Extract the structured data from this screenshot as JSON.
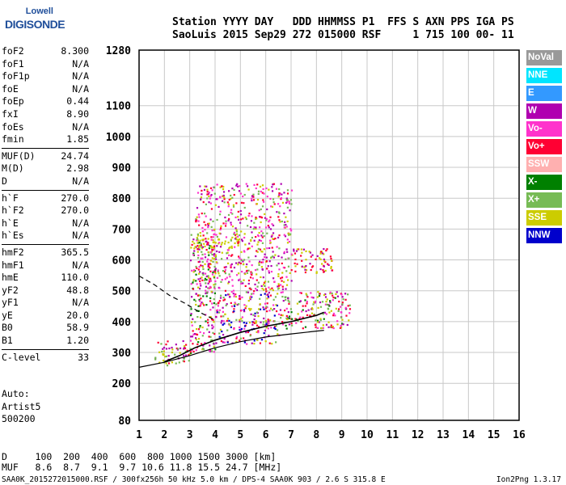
{
  "logo": {
    "line1": "Lowell",
    "line2": "DIGISONDE"
  },
  "header": {
    "row1": "Station YYYY DAY   DDD HHMMSS P1  FFS S AXN PPS IGA PS",
    "row2": "SaoLuis 2015 Sep29 272 015000 RSF     1 715 100 00- 11"
  },
  "params": [
    [
      {
        "name": "foF2",
        "value": "8.300"
      },
      {
        "name": "foF1",
        "value": "N/A"
      },
      {
        "name": "foF1p",
        "value": "N/A"
      },
      {
        "name": "foE",
        "value": "N/A"
      },
      {
        "name": "foEp",
        "value": "0.44"
      },
      {
        "name": "fxI",
        "value": "8.90"
      },
      {
        "name": "foEs",
        "value": "N/A"
      },
      {
        "name": "fmin",
        "value": "1.85"
      }
    ],
    [
      {
        "name": "MUF(D)",
        "value": "24.74"
      },
      {
        "name": "M(D)",
        "value": "2.98"
      },
      {
        "name": "D",
        "value": "N/A"
      }
    ],
    [
      {
        "name": "h`F",
        "value": "270.0"
      },
      {
        "name": "h`F2",
        "value": "270.0"
      },
      {
        "name": "h`E",
        "value": "N/A"
      },
      {
        "name": "h`Es",
        "value": "N/A"
      }
    ],
    [
      {
        "name": "hmF2",
        "value": "365.5"
      },
      {
        "name": "hmF1",
        "value": "N/A"
      },
      {
        "name": "hmE",
        "value": "110.0"
      },
      {
        "name": "yF2",
        "value": "48.8"
      },
      {
        "name": "yF1",
        "value": "N/A"
      },
      {
        "name": "yE",
        "value": "20.0"
      },
      {
        "name": "B0",
        "value": "58.9"
      },
      {
        "name": "B1",
        "value": "1.20"
      }
    ],
    [
      {
        "name": "C-level",
        "value": "33"
      }
    ]
  ],
  "auto": {
    "label": "Auto:",
    "artist": "Artist5",
    "code": "500200"
  },
  "legend": [
    {
      "label": "NoVal",
      "color": "#999999"
    },
    {
      "label": "NNE",
      "color": "#00e5ff"
    },
    {
      "label": "E",
      "color": "#3399ff"
    },
    {
      "label": "W",
      "color": "#b000b0"
    },
    {
      "label": "Vo-",
      "color": "#ff33cc"
    },
    {
      "label": "Vo+",
      "color": "#ff0033"
    },
    {
      "label": "SSW",
      "color": "#ffb0b0"
    },
    {
      "label": "X-",
      "color": "#008000"
    },
    {
      "label": "X+",
      "color": "#77bb55"
    },
    {
      "label": "SSE",
      "color": "#cccc00"
    },
    {
      "label": "NNW",
      "color": "#0000cc"
    }
  ],
  "bottom": {
    "row1": "D     100  200  400  600  800 1000 1500 3000 [km]",
    "row2": "MUF   8.6  8.7  9.1  9.7 10.6 11.8 15.5 24.7 [MHz]"
  },
  "footer": {
    "left": "SAA0K_2015272015000.RSF / 300fx256h 50 kHz 5.0 km / DPS-4 SAA0K 903 / 2.6 S 315.8 E",
    "right": "Ion2Png 1.3.17"
  },
  "chart_data": {
    "type": "scatter",
    "xlim": [
      1,
      16
    ],
    "ylim": [
      80,
      1280
    ],
    "xticks": [
      "1",
      "2",
      "3",
      "4",
      "5",
      "6",
      "7",
      "8",
      "9",
      "10",
      "11",
      "12",
      "13",
      "14",
      "15",
      "16"
    ],
    "yticks": [
      {
        "v": 80,
        "label": "80"
      },
      {
        "v": 200,
        "label": "200"
      },
      {
        "v": 300,
        "label": "300"
      },
      {
        "v": 400,
        "label": "400"
      },
      {
        "v": 500,
        "label": "500"
      },
      {
        "v": 600,
        "label": "600"
      },
      {
        "v": 700,
        "label": "700"
      },
      {
        "v": 800,
        "label": "800"
      },
      {
        "v": 900,
        "label": "900"
      },
      {
        "v": 1000,
        "label": "1000"
      },
      {
        "v": 1100,
        "label": "1100"
      },
      {
        "v": 1280,
        "label": "1280"
      }
    ],
    "grid": true,
    "traces": {
      "o_mode": [
        [
          2.0,
          270
        ],
        [
          2.6,
          290
        ],
        [
          3.2,
          315
        ],
        [
          4.0,
          340
        ],
        [
          5.0,
          365
        ],
        [
          6.0,
          385
        ],
        [
          7.0,
          400
        ],
        [
          8.0,
          420
        ],
        [
          8.3,
          430
        ]
      ],
      "profile": [
        [
          1.0,
          252
        ],
        [
          2.0,
          268
        ],
        [
          3.0,
          290
        ],
        [
          4.0,
          315
        ],
        [
          5.0,
          335
        ],
        [
          6.0,
          350
        ],
        [
          7.0,
          360
        ],
        [
          8.3,
          372
        ]
      ],
      "x_mode_dashed": [
        [
          1.0,
          548
        ],
        [
          1.6,
          520
        ],
        [
          2.2,
          485
        ],
        [
          2.8,
          460
        ],
        [
          3.4,
          430
        ],
        [
          4.0,
          405
        ]
      ]
    },
    "echo_clusters": [
      {
        "f": [
          1.6,
          3.0
        ],
        "h": [
          260,
          340
        ],
        "colors": [
          "Vo+",
          "W",
          "X+",
          "SSE"
        ]
      },
      {
        "f": [
          3.0,
          4.0
        ],
        "h": [
          300,
          700
        ],
        "colors": [
          "Vo+",
          "W",
          "X-",
          "X+",
          "SSE",
          "Vo-"
        ]
      },
      {
        "f": [
          4.0,
          6.5
        ],
        "h": [
          330,
          500
        ],
        "colors": [
          "Vo+",
          "W",
          "X+",
          "SSE",
          "Vo-",
          "NNW"
        ]
      },
      {
        "f": [
          6.5,
          9.3
        ],
        "h": [
          380,
          500
        ],
        "colors": [
          "Vo+",
          "W",
          "X+",
          "SSE",
          "Vo-",
          "X-"
        ]
      },
      {
        "f": [
          3.0,
          5.5
        ],
        "h": [
          640,
          670
        ],
        "colors": [
          "SSE"
        ]
      },
      {
        "f": [
          7.0,
          8.6
        ],
        "h": [
          560,
          640
        ],
        "colors": [
          "W",
          "Vo+",
          "SSE"
        ]
      },
      {
        "f": [
          3.2,
          7.0
        ],
        "h": [
          500,
          850
        ],
        "colors": [
          "W",
          "Vo+",
          "SSE",
          "X+",
          "Vo-"
        ]
      }
    ]
  }
}
